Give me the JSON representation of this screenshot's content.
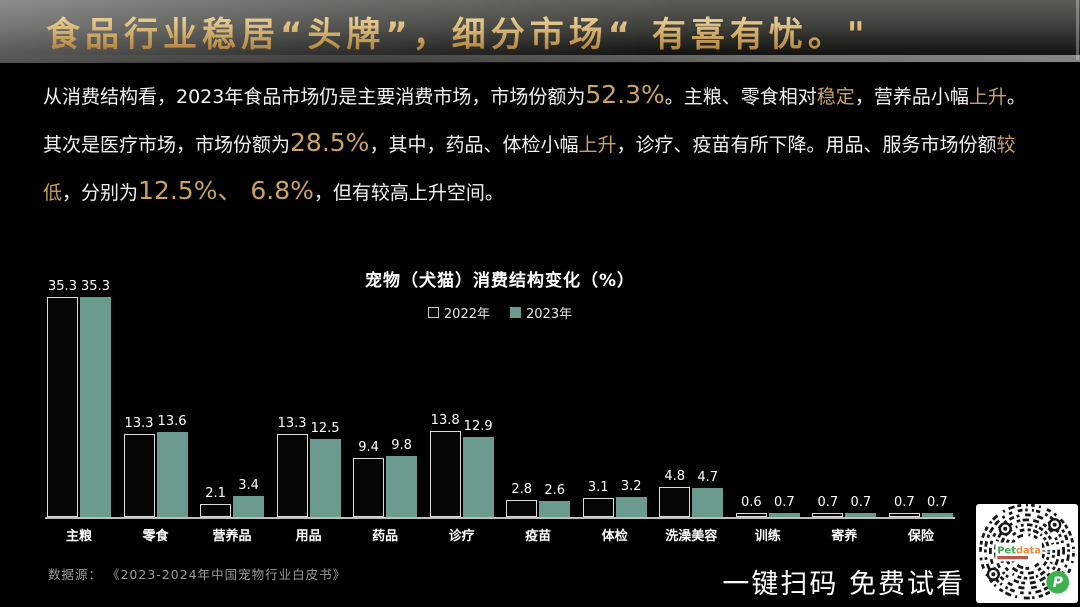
{
  "banner": {
    "title": "食品行业稳居“头牌”，细分市场“ 有喜有忧。\""
  },
  "paragraph": {
    "highlight_color": "#c9a264",
    "lines": [
      {
        "segments": [
          {
            "t": "从消费结构看，2023年食品市场仍是主要消费市场，市场份额为",
            "s": "n"
          },
          {
            "t": "52.3%",
            "s": "num"
          },
          {
            "t": "。主粮、零食相对",
            "s": "n"
          },
          {
            "t": "稳定",
            "s": "g"
          },
          {
            "t": "，营养品小幅",
            "s": "n"
          },
          {
            "t": "上升",
            "s": "g"
          },
          {
            "t": "。",
            "s": "n"
          }
        ]
      },
      {
        "segments": [
          {
            "t": "其次是医疗市场，市场份额为",
            "s": "n"
          },
          {
            "t": "28.5%",
            "s": "num"
          },
          {
            "t": "，其中，药品、体检小幅",
            "s": "n"
          },
          {
            "t": "上升",
            "s": "g"
          },
          {
            "t": "，诊疗、疫苗有所下降。用品、服务市场份额",
            "s": "n"
          },
          {
            "t": "较",
            "s": "g"
          }
        ]
      },
      {
        "segments": [
          {
            "t": "低",
            "s": "g"
          },
          {
            "t": "，分别为",
            "s": "n"
          },
          {
            "t": "12.5%、 6.8%",
            "s": "num"
          },
          {
            "t": "，但有较高上升空间。",
            "s": "n"
          }
        ]
      }
    ]
  },
  "chart_data": {
    "type": "bar",
    "title": "宠物（犬猫）消费结构变化（%）",
    "legend_position": "top",
    "grid": false,
    "ylim": [
      0,
      36
    ],
    "categories": [
      "主粮",
      "零食",
      "营养品",
      "用品",
      "药品",
      "诊疗",
      "疫苗",
      "体检",
      "洗澡美容",
      "训练",
      "寄养",
      "保险"
    ],
    "series": [
      {
        "name": "2022年",
        "color": "#060606",
        "border": "#dcdcdc",
        "values": [
          35.3,
          13.3,
          2.1,
          13.3,
          9.4,
          13.8,
          2.8,
          3.1,
          4.8,
          0.6,
          0.7,
          0.7
        ]
      },
      {
        "name": "2023年",
        "color": "#6b9a90",
        "border": null,
        "values": [
          35.3,
          13.6,
          3.4,
          12.5,
          9.8,
          12.9,
          2.6,
          3.2,
          4.7,
          0.7,
          0.7,
          0.7
        ]
      }
    ]
  },
  "footer": {
    "source": "数据源： 《2023-2024年中国宠物行业白皮书》",
    "cta": "一键扫码 免费试看"
  },
  "qr": {
    "brand_pet": "Pet",
    "brand_data": "data",
    "brand_pet_color": "#3faa4c",
    "brand_data_color": "#e58f3f",
    "logo_letter": "P",
    "logo_color": "#3db14f"
  }
}
